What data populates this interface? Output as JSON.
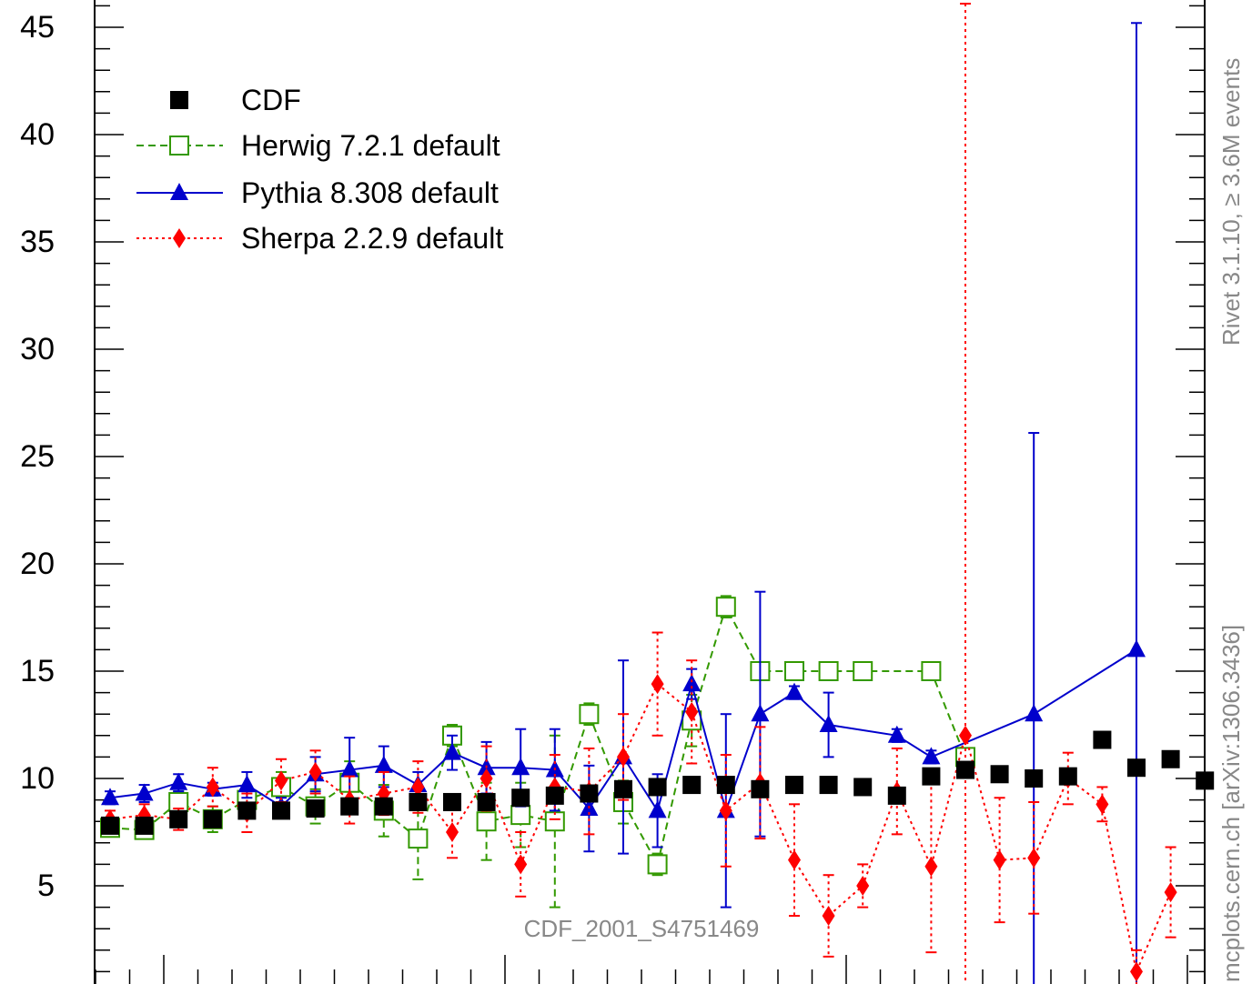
{
  "chart_data": {
    "type": "scatter",
    "title": "",
    "xlabel": "",
    "ylabel": "",
    "ylim": [
      0,
      46.1
    ],
    "y_ticks": [
      5,
      10,
      15,
      20,
      25,
      30,
      35,
      40,
      45
    ],
    "grid": false,
    "legend_position": "top-left",
    "x": [
      1,
      2,
      3,
      4,
      5,
      6,
      7,
      8,
      9,
      10,
      11,
      12,
      13,
      14,
      15,
      16,
      17,
      18,
      19,
      20,
      21,
      22,
      23,
      24,
      25,
      26,
      27,
      28,
      29,
      30,
      31,
      32,
      33,
      34,
      35
    ],
    "series": [
      {
        "name": "CDF",
        "color": "#000000",
        "marker": "filled-square",
        "line": "none",
        "x": [
          1,
          2,
          3,
          4,
          5,
          6,
          7,
          8,
          9,
          10,
          11,
          12,
          13,
          14,
          15,
          16,
          17,
          18,
          19,
          20,
          21,
          22,
          23,
          24,
          25,
          26,
          27,
          28,
          29,
          30,
          31,
          32,
          33,
          34,
          35
        ],
        "values": [
          7.8,
          7.8,
          8.1,
          8.1,
          8.5,
          8.5,
          8.6,
          8.7,
          8.7,
          8.9,
          8.9,
          8.9,
          9.1,
          9.2,
          9.3,
          9.5,
          9.6,
          9.7,
          9.7,
          9.5,
          9.7,
          9.7,
          9.6,
          9.2,
          10.1,
          10.4,
          10.2,
          10.0,
          10.1,
          11.8,
          10.5,
          10.9,
          9.9,
          null,
          null
        ]
      },
      {
        "name": "Herwig 7.2.1 default",
        "color": "#339900",
        "marker": "open-square",
        "line": "dashed",
        "x": [
          1,
          2,
          3,
          4,
          5,
          6,
          7,
          8,
          9,
          10,
          11,
          12,
          13,
          14,
          15,
          16,
          17,
          18,
          19,
          20,
          21,
          22,
          23,
          25,
          26
        ],
        "values": [
          7.7,
          7.6,
          8.9,
          8.1,
          9.0,
          9.6,
          8.7,
          9.8,
          8.5,
          7.2,
          12.0,
          8.0,
          8.3,
          8.0,
          13.0,
          8.9,
          6.0,
          12.7,
          18.0,
          15.0,
          15.0,
          15.0,
          15.0,
          15.0,
          11.0
        ],
        "err_lo": [
          0.4,
          0.4,
          0.5,
          0.6,
          0.6,
          0.7,
          0.8,
          1.0,
          1.2,
          1.9,
          0.5,
          1.8,
          1.5,
          4.0,
          0.5,
          1.0,
          0.5,
          1.2,
          0.5,
          0.3,
          0.3,
          0.3,
          0.3,
          0.3,
          0.3
        ],
        "err_hi": [
          0.4,
          0.4,
          0.5,
          0.6,
          0.6,
          0.7,
          0.8,
          1.0,
          1.2,
          1.9,
          0.5,
          1.8,
          1.5,
          4.0,
          0.5,
          1.0,
          0.5,
          1.2,
          0.5,
          0.3,
          0.3,
          0.3,
          0.3,
          0.3,
          0.3
        ]
      },
      {
        "name": "Pythia 8.308 default",
        "color": "#0000cc",
        "marker": "filled-triangle",
        "line": "solid",
        "x": [
          1,
          2,
          3,
          4,
          5,
          6,
          7,
          8,
          9,
          10,
          11,
          12,
          13,
          14,
          15,
          16,
          17,
          18,
          19,
          20,
          21,
          22,
          24,
          25,
          28,
          31
        ],
        "values": [
          9.1,
          9.3,
          9.8,
          9.5,
          9.7,
          8.7,
          10.2,
          10.4,
          10.6,
          9.7,
          11.2,
          10.5,
          10.5,
          10.4,
          8.6,
          11.0,
          8.5,
          14.4,
          8.5,
          13.0,
          14.0,
          12.5,
          12.0,
          11.0,
          13.0,
          16.0
        ],
        "err_lo": [
          0.3,
          0.4,
          0.4,
          0.3,
          0.6,
          0.4,
          0.8,
          1.5,
          1.0,
          0.6,
          0.8,
          1.2,
          1.8,
          1.9,
          2.0,
          4.5,
          1.7,
          0.7,
          4.5,
          5.7,
          0.3,
          1.5,
          0.3,
          0.3,
          13.0,
          16.0
        ],
        "err_hi": [
          0.3,
          0.4,
          0.4,
          0.3,
          0.6,
          0.4,
          0.8,
          1.5,
          0.9,
          0.6,
          0.8,
          1.2,
          1.8,
          1.9,
          2.0,
          4.5,
          1.7,
          0.7,
          4.5,
          5.7,
          0.3,
          1.5,
          0.3,
          0.3,
          13.1,
          29.2
        ]
      },
      {
        "name": "Sherpa 2.2.9 default",
        "color": "#ff0000",
        "marker": "filled-diamond",
        "line": "dotted",
        "x": [
          1,
          2,
          3,
          4,
          5,
          6,
          7,
          8,
          9,
          10,
          11,
          12,
          13,
          14,
          15,
          16,
          17,
          18,
          19,
          20,
          21,
          22,
          23,
          24,
          25,
          26,
          27,
          28,
          29,
          30,
          31,
          32,
          33
        ],
        "values": [
          8.1,
          8.3,
          8.1,
          9.6,
          8.4,
          9.9,
          10.3,
          9.0,
          9.3,
          9.6,
          7.5,
          10.0,
          6.0,
          9.6,
          9.4,
          11.0,
          14.4,
          13.1,
          8.5,
          9.8,
          6.2,
          3.6,
          5.0,
          9.4,
          5.9,
          12.0,
          6.2,
          6.3,
          10.0,
          8.8,
          1.0,
          4.7,
          null
        ],
        "err_lo": [
          0.4,
          0.5,
          0.5,
          0.9,
          0.9,
          1.0,
          1.0,
          1.1,
          1.0,
          1.2,
          1.2,
          1.5,
          1.5,
          1.5,
          2.0,
          2.0,
          2.4,
          2.4,
          2.6,
          2.6,
          2.6,
          1.9,
          1.0,
          2.0,
          4.0,
          12.0,
          2.9,
          2.6,
          1.2,
          0.8,
          1.0,
          2.1,
          null
        ],
        "err_hi": [
          0.4,
          0.5,
          0.5,
          0.9,
          0.9,
          1.0,
          1.0,
          1.1,
          1.0,
          1.2,
          1.2,
          1.5,
          1.5,
          1.5,
          2.0,
          2.0,
          2.4,
          2.4,
          2.6,
          2.6,
          2.6,
          1.9,
          1.0,
          2.0,
          4.0,
          34.1,
          2.9,
          2.6,
          1.2,
          0.8,
          1.0,
          2.1,
          null
        ]
      }
    ],
    "annotations": {
      "side_label_top": "Rivet 3.1.10, ≥ 3.6M events",
      "side_label_bottom": "mcplots.cern.ch [arXiv:1306.3436]",
      "analysis_label": "CDF_2001_S4751469"
    }
  }
}
